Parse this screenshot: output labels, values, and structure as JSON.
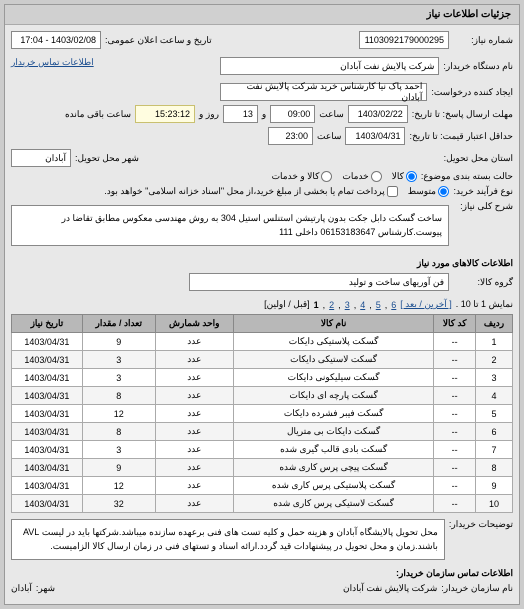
{
  "panel_title": "جزئیات اطلاعات نیاز",
  "info": {
    "niaz_no_label": "شماره نیاز:",
    "niaz_no": "1103092179000295",
    "pub_date_label": "تاریخ و ساعت اعلان عمومی:",
    "pub_date": "1403/02/08 - 17:04",
    "org_label": "نام دستگاه خریدار:",
    "org": "شرکت پالایش نفت آبادان",
    "requester_label": "ایجاد کننده درخواست:",
    "requester": "احمد پاک نیا کارشناس خرید شرکت پالایش نفت آبادان",
    "contact_label": "اطلاعات تماس خریدار",
    "deadline_send_label": "مهلت ارسال پاسخ: تا تاریخ:",
    "deadline_send_date": "1403/02/22",
    "time_label": "ساعت",
    "deadline_send_time": "09:00",
    "and_label": "و",
    "days_label": "روز و",
    "days": "13",
    "timer": "15:23:12",
    "timer_suffix": "ساعت باقی مانده",
    "validity_label": "حداقل اعتبار قیمت: تا تاریخ:",
    "validity_date": "1403/04/31",
    "validity_time": "23:00",
    "delivery_place_label": "استان محل تحویل:",
    "delivery_city_label": "شهر محل تحویل:",
    "delivery_city": "آبادان",
    "pkg_label": "حالت بسته بندی موضوع:",
    "pkg_kala": "کالا",
    "pkg_khadamat": "خدمات",
    "pkg_kala_khadamat": "کالا و خدمات",
    "process_label": "نوع فرآیند خرید:",
    "process_full": "پرداخت تمام یا بخشی از مبلغ خرید،از محل \"اسناد خزانه اسلامی\" خواهد بود.",
    "process_mid": "متوسط",
    "desc_label": "شرح کلی نیاز:",
    "desc": "ساخت گسکت دابل جکت بدون پارتیشن استنلس استیل 304 به روش مهندسی معکوس مطابق تقاضا در پیوست.کارشناس 06153183647 داخلی 111"
  },
  "goods": {
    "section_title": "اطلاعات کالاهای مورد نیاز",
    "group_label": "گروه کالا:",
    "group_value": "فن آوریهای ساخت و تولید",
    "pager_text": "نمایش 1 تا 10 .",
    "pager_last": "[ آخرین / بعد ]",
    "pager_pages": [
      "6",
      "5",
      "4",
      "3",
      "2",
      "1"
    ],
    "pager_first": "[قبل / اولین]",
    "headers": [
      "ردیف",
      "کد کالا",
      "نام کالا",
      "واحد شمارش",
      "تعداد / مقدار",
      "تاریخ نیاز"
    ],
    "rows": [
      [
        "1",
        "--",
        "گسکت پلاستیکی دایکات",
        "عدد",
        "9",
        "1403/04/31"
      ],
      [
        "2",
        "--",
        "گسکت لاستیکی دایکات",
        "عدد",
        "3",
        "1403/04/31"
      ],
      [
        "3",
        "--",
        "گسکت سیلیکونی دایکات",
        "عدد",
        "3",
        "1403/04/31"
      ],
      [
        "4",
        "--",
        "گسکت پارچه ای دایکات",
        "عدد",
        "8",
        "1403/04/31"
      ],
      [
        "5",
        "--",
        "گسکت فیبر فشرده دایکات",
        "عدد",
        "12",
        "1403/04/31"
      ],
      [
        "6",
        "--",
        "گسکت دایکات بی متریال",
        "عدد",
        "8",
        "1403/04/31"
      ],
      [
        "7",
        "--",
        "گسکت بادی قالب گیری شده",
        "عدد",
        "3",
        "1403/04/31"
      ],
      [
        "8",
        "--",
        "گسکت پیچی پرس کاری شده",
        "عدد",
        "9",
        "1403/04/31"
      ],
      [
        "9",
        "--",
        "گسکت پلاستیکی پرس کاری شده",
        "عدد",
        "12",
        "1403/04/31"
      ],
      [
        "10",
        "--",
        "گسکت لاستیکی پرس کاری شده",
        "عدد",
        "32",
        "1403/04/31"
      ]
    ]
  },
  "footer": {
    "note_label": "توضیحات خریدار:",
    "note": "محل تحویل پالایشگاه آبادان و هزینه حمل و کلیه تست های فنی برعهده سازنده میباشد.شرکتها باید در لیست AVL باشند.زمان و محل تحویل در پیشنهادات قید گردد.ارائه اسناد و تستهای فنی در زمان ارسال کالا الزامیست.",
    "contact_label": "اطلاعات تماس سازمان خریدار:",
    "org_name_label": "نام سازمان خریدار:",
    "org_name": "شرکت پالایش نفت آبادان",
    "city_label": "شهر:",
    "city": "آبادان"
  }
}
